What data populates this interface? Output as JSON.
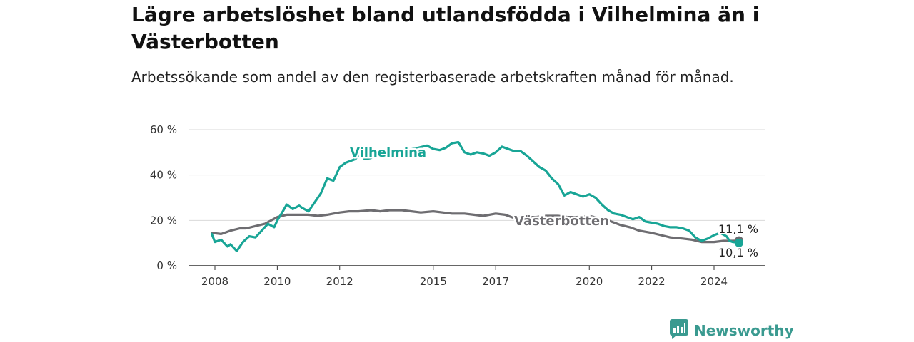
{
  "title": "Lägre arbetslöshet bland utlandsfödda i Vilhelmina än i Västerbotten",
  "subtitle": "Arbetssökande som andel av den registerbaserade arbetskraften månad för månad.",
  "brand": {
    "name": "Newsworthy",
    "icon": "newsworthy-logo-icon",
    "color": "#3a9a90"
  },
  "chart_data": {
    "type": "line",
    "x_tick_labels": [
      "2008",
      "2010",
      "2012",
      "2015",
      "2017",
      "2020",
      "2022",
      "2024"
    ],
    "y_tick_labels": [
      "0 %",
      "20 %",
      "40 %",
      "60 %"
    ],
    "ylim": [
      0,
      60
    ],
    "xlim": [
      2008.0,
      2024.8
    ],
    "grid": true,
    "series": [
      {
        "name": "Vilhelmina",
        "color": "#18a596",
        "end_label": "10,1 %",
        "points": [
          [
            2007.9,
            14.0
          ],
          [
            2008.0,
            10.5
          ],
          [
            2008.2,
            11.5
          ],
          [
            2008.4,
            8.5
          ],
          [
            2008.5,
            9.5
          ],
          [
            2008.7,
            6.5
          ],
          [
            2008.9,
            10.5
          ],
          [
            2009.1,
            13.0
          ],
          [
            2009.3,
            12.5
          ],
          [
            2009.5,
            15.5
          ],
          [
            2009.7,
            18.5
          ],
          [
            2009.9,
            17.0
          ],
          [
            2010.0,
            20.0
          ],
          [
            2010.2,
            24.5
          ],
          [
            2010.3,
            27.0
          ],
          [
            2010.5,
            25.0
          ],
          [
            2010.7,
            26.5
          ],
          [
            2010.8,
            25.5
          ],
          [
            2011.0,
            24.0
          ],
          [
            2011.2,
            28.0
          ],
          [
            2011.4,
            32.0
          ],
          [
            2011.6,
            38.5
          ],
          [
            2011.8,
            37.5
          ],
          [
            2012.0,
            43.5
          ],
          [
            2012.2,
            45.5
          ],
          [
            2012.4,
            46.5
          ],
          [
            2012.5,
            47.0
          ],
          [
            2012.7,
            50.0
          ],
          [
            2012.8,
            47.0
          ],
          [
            2013.0,
            47.5
          ],
          [
            2013.2,
            49.0
          ],
          [
            2013.5,
            49.0
          ],
          [
            2013.8,
            49.5
          ],
          [
            2014.0,
            50.5
          ],
          [
            2014.3,
            51.5
          ],
          [
            2014.5,
            52.0
          ],
          [
            2014.8,
            53.0
          ],
          [
            2015.0,
            51.5
          ],
          [
            2015.2,
            51.0
          ],
          [
            2015.4,
            52.0
          ],
          [
            2015.6,
            54.0
          ],
          [
            2015.8,
            54.5
          ],
          [
            2016.0,
            50.0
          ],
          [
            2016.2,
            49.0
          ],
          [
            2016.4,
            50.0
          ],
          [
            2016.6,
            49.5
          ],
          [
            2016.8,
            48.5
          ],
          [
            2017.0,
            50.0
          ],
          [
            2017.2,
            52.5
          ],
          [
            2017.4,
            51.5
          ],
          [
            2017.6,
            50.5
          ],
          [
            2017.8,
            50.5
          ],
          [
            2018.0,
            48.5
          ],
          [
            2018.2,
            46.0
          ],
          [
            2018.4,
            43.5
          ],
          [
            2018.6,
            42.0
          ],
          [
            2018.8,
            38.5
          ],
          [
            2019.0,
            36.0
          ],
          [
            2019.2,
            31.0
          ],
          [
            2019.4,
            32.5
          ],
          [
            2019.6,
            31.5
          ],
          [
            2019.8,
            30.5
          ],
          [
            2020.0,
            31.5
          ],
          [
            2020.2,
            30.0
          ],
          [
            2020.4,
            27.0
          ],
          [
            2020.6,
            24.5
          ],
          [
            2020.8,
            23.0
          ],
          [
            2021.0,
            22.5
          ],
          [
            2021.2,
            21.5
          ],
          [
            2021.4,
            20.5
          ],
          [
            2021.6,
            21.5
          ],
          [
            2021.8,
            19.5
          ],
          [
            2022.0,
            19.0
          ],
          [
            2022.2,
            18.5
          ],
          [
            2022.4,
            17.5
          ],
          [
            2022.6,
            17.0
          ],
          [
            2022.8,
            17.0
          ],
          [
            2023.0,
            16.5
          ],
          [
            2023.2,
            15.5
          ],
          [
            2023.4,
            12.5
          ],
          [
            2023.6,
            11.0
          ],
          [
            2023.8,
            12.0
          ],
          [
            2024.0,
            13.5
          ],
          [
            2024.2,
            14.5
          ],
          [
            2024.4,
            13.0
          ],
          [
            2024.5,
            11.0
          ],
          [
            2024.6,
            10.5
          ],
          [
            2024.8,
            10.1
          ]
        ]
      },
      {
        "name": "Västerbotten",
        "color": "#6e6d71",
        "end_label": "11,1 %",
        "points": [
          [
            2007.9,
            14.5
          ],
          [
            2008.2,
            14.0
          ],
          [
            2008.5,
            15.5
          ],
          [
            2008.8,
            16.5
          ],
          [
            2009.0,
            16.5
          ],
          [
            2009.3,
            17.5
          ],
          [
            2009.6,
            18.5
          ],
          [
            2010.0,
            21.5
          ],
          [
            2010.3,
            22.5
          ],
          [
            2010.6,
            22.5
          ],
          [
            2011.0,
            22.5
          ],
          [
            2011.3,
            22.0
          ],
          [
            2011.6,
            22.5
          ],
          [
            2012.0,
            23.5
          ],
          [
            2012.3,
            24.0
          ],
          [
            2012.6,
            24.0
          ],
          [
            2013.0,
            24.5
          ],
          [
            2013.3,
            24.0
          ],
          [
            2013.6,
            24.5
          ],
          [
            2014.0,
            24.5
          ],
          [
            2014.3,
            24.0
          ],
          [
            2014.6,
            23.5
          ],
          [
            2015.0,
            24.0
          ],
          [
            2015.3,
            23.5
          ],
          [
            2015.6,
            23.0
          ],
          [
            2016.0,
            23.0
          ],
          [
            2016.3,
            22.5
          ],
          [
            2016.6,
            22.0
          ],
          [
            2017.0,
            23.0
          ],
          [
            2017.3,
            22.5
          ],
          [
            2017.6,
            21.0
          ],
          [
            2018.0,
            21.5
          ],
          [
            2018.3,
            21.5
          ],
          [
            2018.6,
            22.0
          ],
          [
            2019.0,
            22.0
          ],
          [
            2019.3,
            21.5
          ],
          [
            2019.6,
            21.5
          ],
          [
            2020.0,
            22.0
          ],
          [
            2020.3,
            21.0
          ],
          [
            2020.6,
            20.0
          ],
          [
            2021.0,
            18.0
          ],
          [
            2021.3,
            17.0
          ],
          [
            2021.6,
            15.5
          ],
          [
            2022.0,
            14.5
          ],
          [
            2022.3,
            13.5
          ],
          [
            2022.6,
            12.5
          ],
          [
            2023.0,
            12.0
          ],
          [
            2023.3,
            11.5
          ],
          [
            2023.6,
            10.5
          ],
          [
            2024.0,
            10.5
          ],
          [
            2024.3,
            11.0
          ],
          [
            2024.6,
            11.0
          ],
          [
            2024.8,
            11.1
          ]
        ]
      }
    ]
  }
}
